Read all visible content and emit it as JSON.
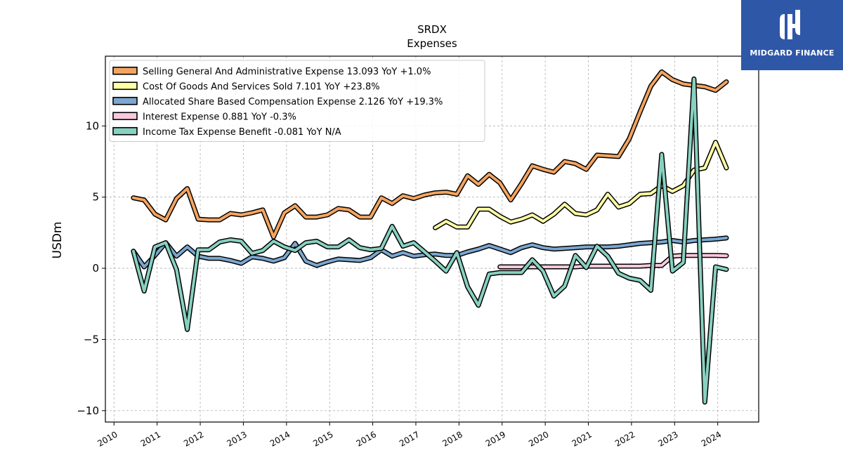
{
  "logo": {
    "text": "MIDGARD FINANCE"
  },
  "chart_data": {
    "type": "line",
    "title": "SRDX",
    "subtitle": "Expenses",
    "ylabel": "USDm",
    "xlabel": "",
    "ylim": [
      -10.8,
      14.9
    ],
    "xlim": [
      2009.8,
      2024.95
    ],
    "yticks": [
      -10,
      -5,
      0,
      5,
      10
    ],
    "ytick_labels": [
      "−10",
      "−5",
      "0",
      "5",
      "10"
    ],
    "xticks": [
      2010,
      2011,
      2012,
      2013,
      2014,
      2015,
      2016,
      2017,
      2018,
      2019,
      2020,
      2021,
      2022,
      2023,
      2024
    ],
    "xtick_labels": [
      "2010",
      "2011",
      "2012",
      "2013",
      "2014",
      "2015",
      "2016",
      "2017",
      "2018",
      "2019",
      "2020",
      "2021",
      "2022",
      "2023",
      "2024"
    ],
    "grid": true,
    "legend_position": "top-left",
    "series": [
      {
        "name": "Selling General And Administrative Expense  13.093 YoY +1.0%",
        "color": "#f4a460",
        "x": [
          2010.45,
          2010.7,
          2010.95,
          2011.2,
          2011.45,
          2011.7,
          2011.95,
          2012.2,
          2012.45,
          2012.7,
          2012.95,
          2013.2,
          2013.45,
          2013.7,
          2013.95,
          2014.2,
          2014.45,
          2014.7,
          2014.95,
          2015.2,
          2015.45,
          2015.7,
          2015.95,
          2016.2,
          2016.45,
          2016.7,
          2016.95,
          2017.2,
          2017.45,
          2017.7,
          2017.95,
          2018.2,
          2018.45,
          2018.7,
          2018.95,
          2019.2,
          2019.45,
          2019.7,
          2019.95,
          2020.2,
          2020.45,
          2020.7,
          2020.95,
          2021.2,
          2021.45,
          2021.7,
          2021.95,
          2022.2,
          2022.45,
          2022.7,
          2022.95,
          2023.2,
          2023.45,
          2023.7,
          2023.95,
          2024.2
        ],
        "y": [
          4.95,
          4.8,
          3.8,
          3.4,
          4.9,
          5.6,
          3.45,
          3.4,
          3.4,
          3.85,
          3.75,
          3.9,
          4.1,
          2.2,
          3.9,
          4.4,
          3.6,
          3.6,
          3.75,
          4.2,
          4.1,
          3.6,
          3.6,
          4.95,
          4.55,
          5.1,
          4.9,
          5.15,
          5.3,
          5.35,
          5.2,
          6.5,
          5.9,
          6.6,
          6.0,
          4.8,
          5.95,
          7.2,
          6.95,
          6.75,
          7.5,
          7.35,
          6.95,
          7.95,
          7.9,
          7.85,
          9.1,
          11.0,
          12.8,
          13.8,
          13.25,
          12.95,
          12.85,
          12.75,
          12.5,
          13.1
        ]
      },
      {
        "name": "Cost Of Goods And Services Sold  7.101 YoY +23.8%",
        "color": "#ffffa6",
        "x": [
          2017.45,
          2017.7,
          2017.95,
          2018.2,
          2018.45,
          2018.7,
          2018.95,
          2019.2,
          2019.45,
          2019.7,
          2019.95,
          2020.2,
          2020.45,
          2020.7,
          2020.95,
          2021.2,
          2021.45,
          2021.7,
          2021.95,
          2022.2,
          2022.45,
          2022.7,
          2022.95,
          2023.2,
          2023.45,
          2023.7,
          2023.95,
          2024.2
        ],
        "y": [
          2.85,
          3.3,
          2.9,
          2.9,
          4.15,
          4.15,
          3.65,
          3.25,
          3.45,
          3.75,
          3.3,
          3.8,
          4.5,
          3.85,
          3.75,
          4.1,
          5.2,
          4.3,
          4.55,
          5.2,
          5.25,
          5.8,
          5.4,
          5.8,
          6.9,
          7.05,
          8.85,
          7.05
        ]
      },
      {
        "name": "Allocated Share Based Compensation Expense  2.126 YoY +19.3%",
        "color": "#7ba7d1",
        "x": [
          2010.45,
          2010.7,
          2010.95,
          2011.2,
          2011.45,
          2011.7,
          2011.95,
          2012.2,
          2012.45,
          2012.7,
          2012.95,
          2013.2,
          2013.45,
          2013.7,
          2013.95,
          2014.2,
          2014.45,
          2014.7,
          2014.95,
          2015.2,
          2015.45,
          2015.7,
          2015.95,
          2016.2,
          2016.45,
          2016.7,
          2016.95,
          2017.2,
          2017.45,
          2017.7,
          2017.95,
          2018.2,
          2018.45,
          2018.7,
          2018.95,
          2019.2,
          2019.45,
          2019.7,
          2019.95,
          2020.2,
          2020.45,
          2020.7,
          2020.95,
          2021.2,
          2021.45,
          2021.7,
          2021.95,
          2022.2,
          2022.45,
          2022.7,
          2022.95,
          2023.2,
          2023.45,
          2023.7,
          2023.95,
          2024.2
        ],
        "y": [
          1.2,
          0.1,
          0.9,
          1.8,
          0.85,
          1.5,
          0.85,
          0.7,
          0.7,
          0.55,
          0.35,
          0.8,
          0.7,
          0.5,
          0.75,
          1.75,
          0.5,
          0.2,
          0.45,
          0.65,
          0.6,
          0.55,
          0.75,
          1.3,
          0.85,
          1.1,
          0.85,
          0.95,
          1.0,
          0.9,
          0.9,
          1.15,
          1.35,
          1.6,
          1.35,
          1.1,
          1.45,
          1.65,
          1.45,
          1.35,
          1.4,
          1.45,
          1.5,
          1.5,
          1.5,
          1.55,
          1.65,
          1.75,
          1.8,
          1.85,
          1.95,
          1.85,
          1.95,
          2.0,
          2.05,
          2.13
        ]
      },
      {
        "name": "Interest Expense  0.881 YoY -0.3%",
        "color": "#f8c8dc",
        "x": [
          2018.95,
          2019.2,
          2019.45,
          2019.7,
          2019.95,
          2020.2,
          2020.45,
          2020.7,
          2020.95,
          2021.2,
          2021.45,
          2021.7,
          2021.95,
          2022.2,
          2022.45,
          2022.7,
          2022.95,
          2023.2,
          2023.45,
          2023.7,
          2023.95,
          2024.2
        ],
        "y": [
          0.1,
          0.1,
          0.1,
          0.1,
          0.1,
          0.1,
          0.1,
          0.1,
          0.15,
          0.15,
          0.15,
          0.15,
          0.15,
          0.15,
          0.2,
          0.2,
          0.85,
          0.9,
          0.9,
          0.9,
          0.9,
          0.88
        ]
      },
      {
        "name": "Income Tax Expense Benefit  -0.081 YoY N/A",
        "color": "#88d1c0",
        "x": [
          2010.45,
          2010.7,
          2010.95,
          2011.2,
          2011.45,
          2011.7,
          2011.95,
          2012.2,
          2012.45,
          2012.7,
          2012.95,
          2013.2,
          2013.45,
          2013.7,
          2013.95,
          2014.2,
          2014.45,
          2014.7,
          2014.95,
          2015.2,
          2015.45,
          2015.7,
          2015.95,
          2016.2,
          2016.45,
          2016.7,
          2016.95,
          2017.2,
          2017.45,
          2017.7,
          2017.95,
          2018.2,
          2018.45,
          2018.7,
          2018.95,
          2019.2,
          2019.45,
          2019.7,
          2019.95,
          2020.2,
          2020.45,
          2020.7,
          2020.95,
          2021.2,
          2021.45,
          2021.7,
          2021.95,
          2022.2,
          2022.45,
          2022.7,
          2022.95,
          2023.2,
          2023.45,
          2023.7,
          2023.95,
          2024.2
        ],
        "y": [
          1.2,
          -1.6,
          1.5,
          1.8,
          -0.1,
          -4.3,
          1.3,
          1.3,
          1.85,
          2.0,
          1.9,
          1.05,
          1.25,
          1.9,
          1.5,
          1.25,
          1.8,
          1.9,
          1.5,
          1.5,
          2.0,
          1.45,
          1.3,
          1.4,
          2.95,
          1.55,
          1.8,
          1.15,
          0.5,
          -0.2,
          1.1,
          -1.3,
          -2.6,
          -0.4,
          -0.3,
          -0.3,
          -0.3,
          0.6,
          -0.2,
          -1.95,
          -1.25,
          0.9,
          0.05,
          1.55,
          0.85,
          -0.35,
          -0.7,
          -0.85,
          -1.55,
          8.0,
          -0.2,
          0.4,
          13.3,
          -9.4,
          0.1,
          -0.08
        ]
      }
    ]
  }
}
